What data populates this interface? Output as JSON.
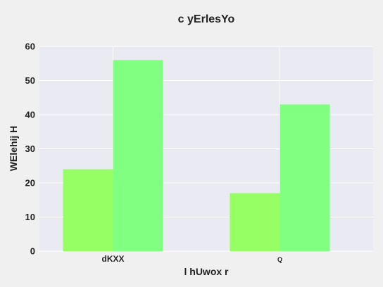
{
  "chart_data": {
    "type": "bar",
    "title": "c yErlesYo",
    "xlabel": "l   hUwox r",
    "ylabel": "WElehij H",
    "categories": [
      "dKXX",
      "Q"
    ],
    "series": [
      {
        "values": [
          24,
          17
        ],
        "color": "#96ff64"
      },
      {
        "values": [
          56,
          43
        ],
        "color": "#80ff80"
      }
    ],
    "ylim": [
      0,
      60
    ],
    "yticks": [
      0,
      10,
      20,
      30,
      40,
      50,
      60
    ],
    "grid": true,
    "background_color": "#eaeaf2",
    "legend": "none"
  }
}
